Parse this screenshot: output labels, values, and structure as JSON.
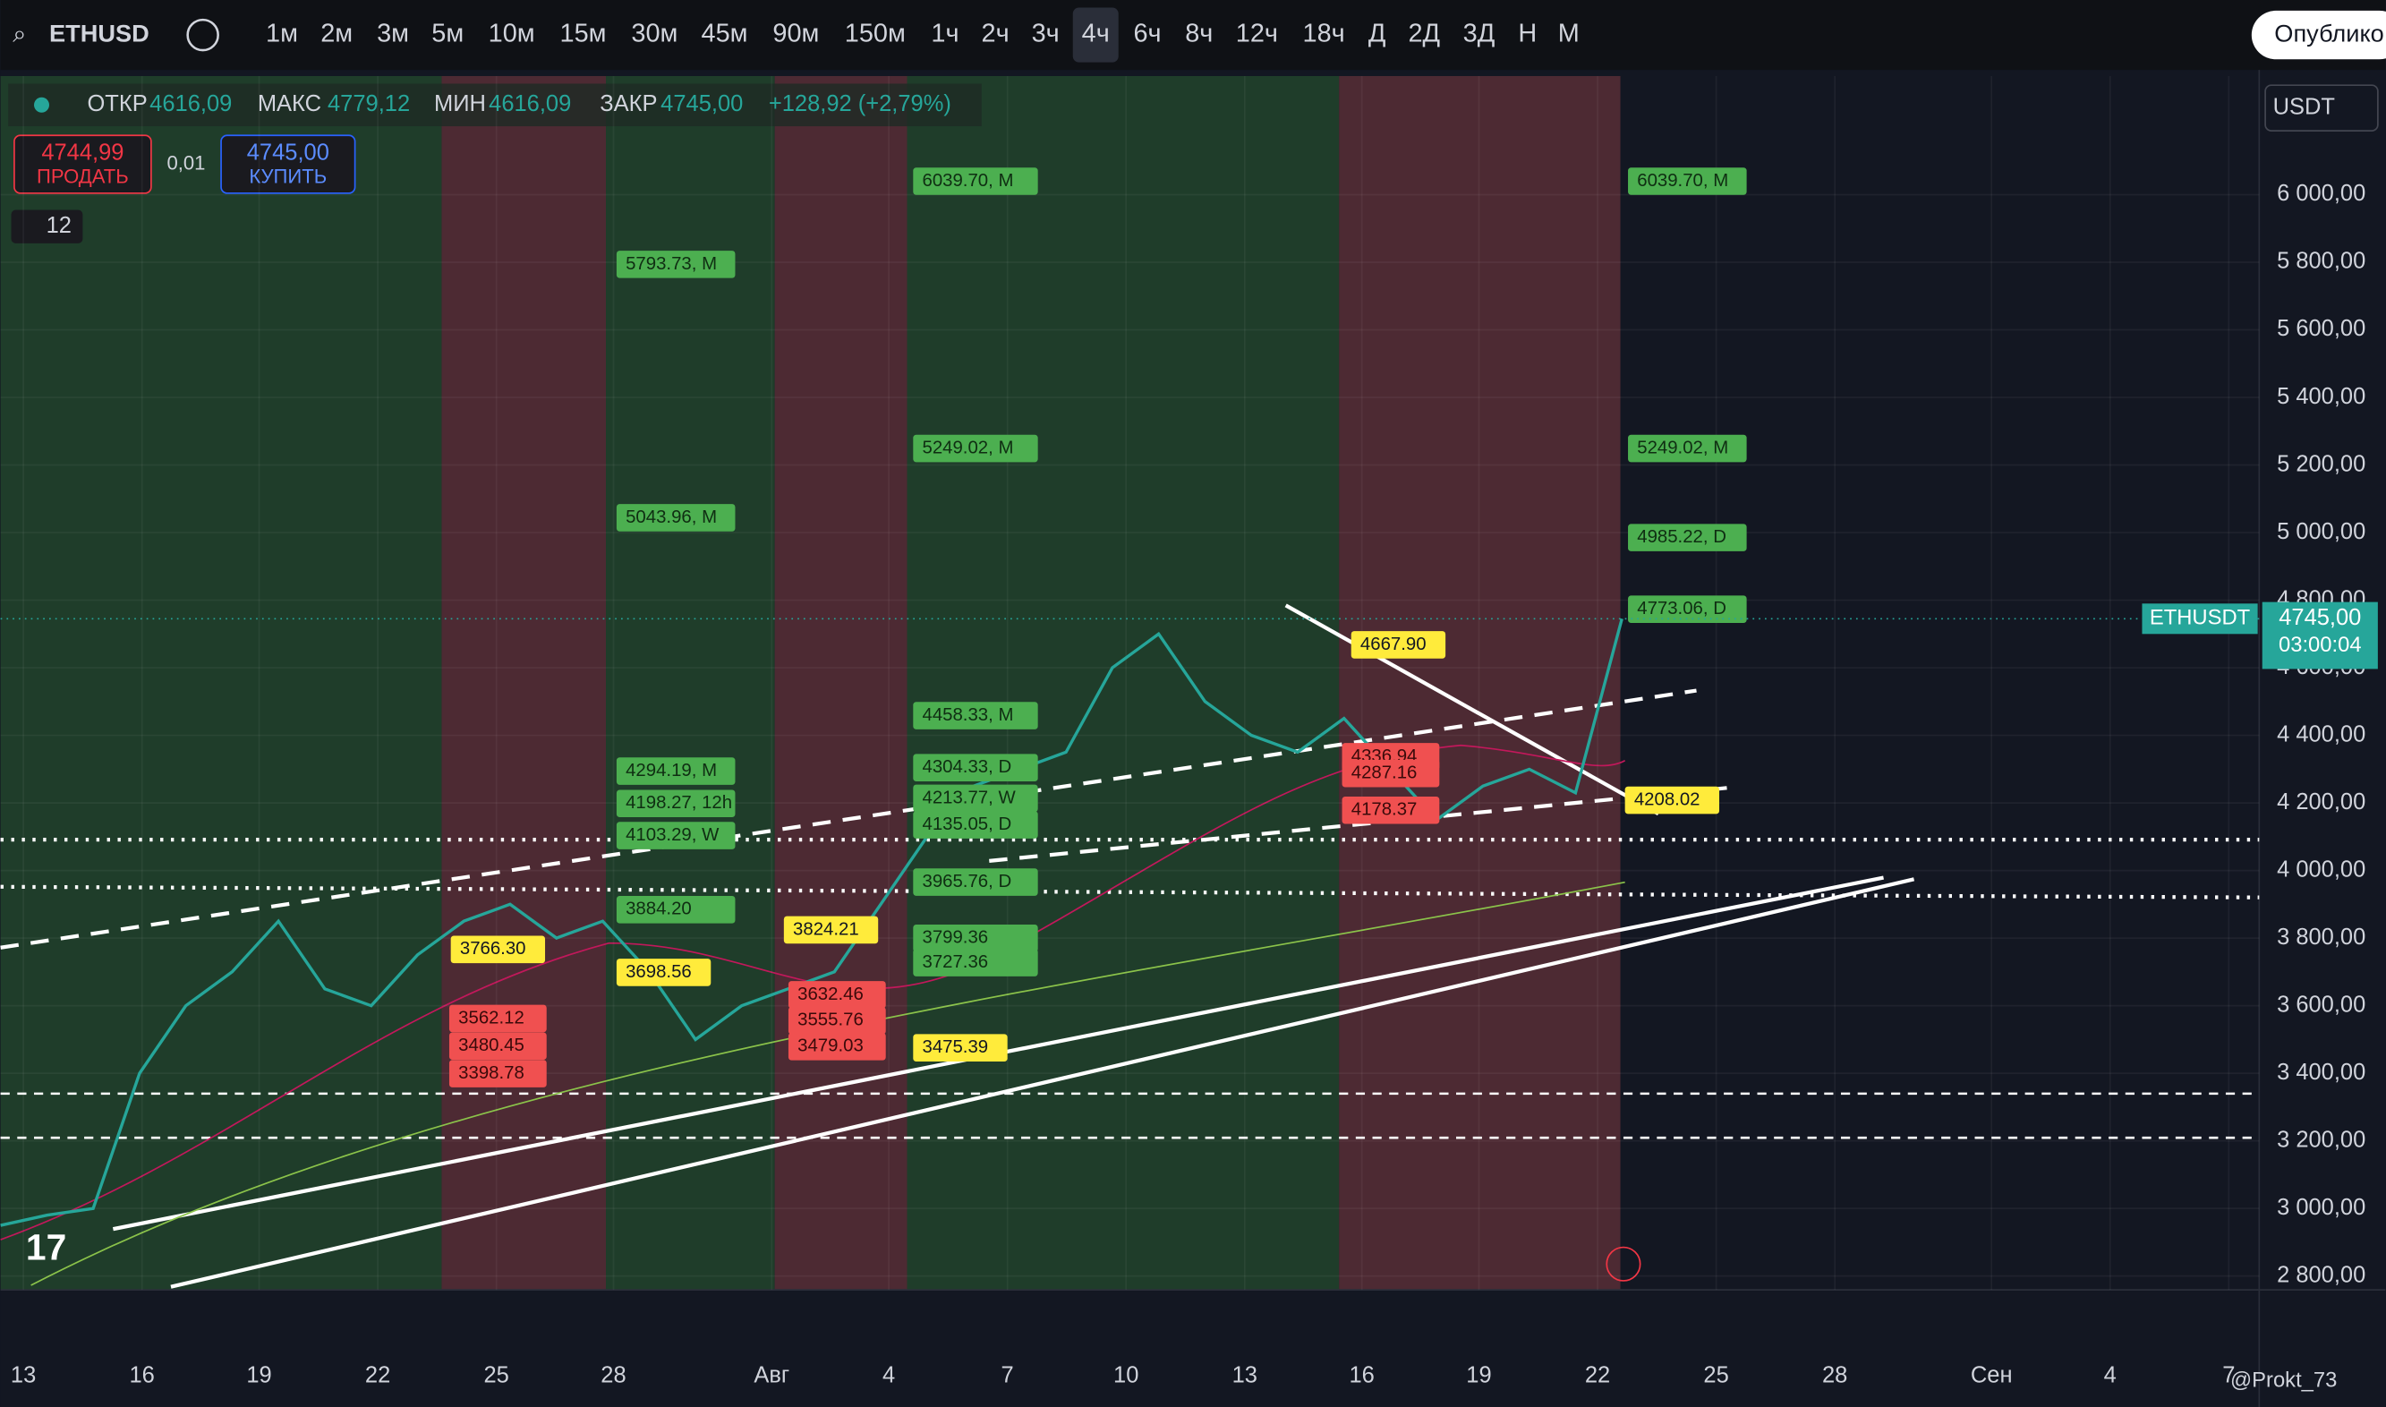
{
  "toolbar": {
    "symbol": "ETHUSD",
    "intervals": [
      "1м",
      "2м",
      "3м",
      "5м",
      "10м",
      "15м",
      "30м",
      "45м",
      "90м",
      "150м",
      "1ч",
      "2ч",
      "3ч",
      "4ч",
      "6ч",
      "8ч",
      "12ч",
      "18ч",
      "Д",
      "2Д",
      "3Д",
      "Н",
      "М"
    ],
    "active_interval": "4ч",
    "publish": "Опублико"
  },
  "info": {
    "open_label": "ОТКР",
    "open": "4616,09",
    "high_label": "МАКС",
    "high": "4779,12",
    "low_label": "МИН",
    "low": "4616,09",
    "close_label": "ЗАКР",
    "close": "4745,00",
    "change": "+128,92 (+2,79%)"
  },
  "trade": {
    "sell_price": "4744,99",
    "sell": "ПРОДАТЬ",
    "qty": "0,01",
    "buy_price": "4745,00",
    "buy": "КУПИТЬ",
    "indicators": "12"
  },
  "currency": "USDT",
  "watermark": "@Prokt_73",
  "chart_data": {
    "type": "line",
    "symbol_tag": "ETHUSDT",
    "last_price": {
      "value": 4745,
      "label": "4745,00"
    },
    "countdown": "03:00:04",
    "ylim": [
      2759,
      6351
    ],
    "yticks": [
      {
        "value": 2800,
        "label": "2 800,00"
      },
      {
        "value": 3000,
        "label": "3 000,00"
      },
      {
        "value": 3200,
        "label": "3 200,00"
      },
      {
        "value": 3400,
        "label": "3 400,00"
      },
      {
        "value": 3600,
        "label": "3 600,00"
      },
      {
        "value": 3800,
        "label": "3 800,00"
      },
      {
        "value": 4000,
        "label": "4 000,00"
      },
      {
        "value": 4200,
        "label": "4 200,00"
      },
      {
        "value": 4400,
        "label": "4 400,00"
      },
      {
        "value": 4600,
        "label": "4 600,00"
      },
      {
        "value": 4800,
        "label": "4 800,00"
      },
      {
        "value": 5000,
        "label": "5 000,00"
      },
      {
        "value": 5200,
        "label": "5 200,00"
      },
      {
        "value": 5400,
        "label": "5 400,00"
      },
      {
        "value": 5600,
        "label": "5 600,00"
      },
      {
        "value": 5800,
        "label": "5 800,00"
      },
      {
        "value": 6000,
        "label": "6 000,00"
      }
    ],
    "xticks": [
      "13",
      "16",
      "19",
      "22",
      "25",
      "28",
      "Авг",
      "4",
      "7",
      "10",
      "13",
      "16",
      "19",
      "22",
      "25",
      "28",
      "Сен",
      "4",
      "7"
    ],
    "closes": [
      2950,
      2980,
      3000,
      3400,
      3600,
      3700,
      3850,
      3650,
      3600,
      3750,
      3850,
      3900,
      3800,
      3850,
      3700,
      3500,
      3600,
      3650,
      3700,
      3900,
      4100,
      4250,
      4300,
      4350,
      4600,
      4700,
      4500,
      4400,
      4350,
      4450,
      4300,
      4150,
      4250,
      4300,
      4230,
      4745
    ],
    "levels": {
      "green_left": [
        {
          "value": 5793.73,
          "label": "5793.73, M"
        },
        {
          "value": 5043.96,
          "label": "5043.96, M"
        },
        {
          "value": 4294.19,
          "label": "4294.19, M"
        },
        {
          "value": 4198.27,
          "label": "4198.27, 12h"
        },
        {
          "value": 4103.29,
          "label": "4103.29, W"
        },
        {
          "value": 3884.2,
          "label": "3884.20"
        }
      ],
      "green_mid": [
        {
          "value": 6039.7,
          "label": "6039.70, M"
        },
        {
          "value": 5249.02,
          "label": "5249.02, M"
        },
        {
          "value": 4458.33,
          "label": "4458.33, M"
        },
        {
          "value": 4304.33,
          "label": "4304.33, D"
        },
        {
          "value": 4213.77,
          "label": "4213.77, W"
        },
        {
          "value": 4135.05,
          "label": "4135.05, D"
        },
        {
          "value": 3965.76,
          "label": "3965.76, D"
        },
        {
          "value": 3799.36,
          "label": "3799.36"
        },
        {
          "value": 3727.36,
          "label": "3727.36"
        }
      ],
      "green_right": [
        {
          "value": 6039.7,
          "label": "6039.70, M"
        },
        {
          "value": 5249.02,
          "label": "5249.02, M"
        },
        {
          "value": 4985.22,
          "label": "4985.22, D"
        },
        {
          "value": 4773.06,
          "label": "4773.06, D"
        }
      ],
      "yellow": [
        {
          "value": 3766.3,
          "label": "3766.30"
        },
        {
          "value": 3698.56,
          "label": "3698.56"
        },
        {
          "value": 3824.21,
          "label": "3824.21"
        },
        {
          "value": 3475.39,
          "label": "3475.39"
        },
        {
          "value": 4667.9,
          "label": "4667.90"
        },
        {
          "value": 4208.02,
          "label": "4208.02"
        }
      ],
      "red": [
        {
          "value": 3562.12,
          "label": "3562.12"
        },
        {
          "value": 3480.45,
          "label": "3480.45"
        },
        {
          "value": 3398.78,
          "label": "3398.78"
        },
        {
          "value": 3632.46,
          "label": "3632.46"
        },
        {
          "value": 3555.76,
          "label": "3555.76"
        },
        {
          "value": 3479.03,
          "label": "3479.03"
        },
        {
          "value": 4336.94,
          "label": "4336.94"
        },
        {
          "value": 4287.16,
          "label": "4287.16"
        },
        {
          "value": 4178.37,
          "label": "4178.37"
        }
      ]
    }
  }
}
